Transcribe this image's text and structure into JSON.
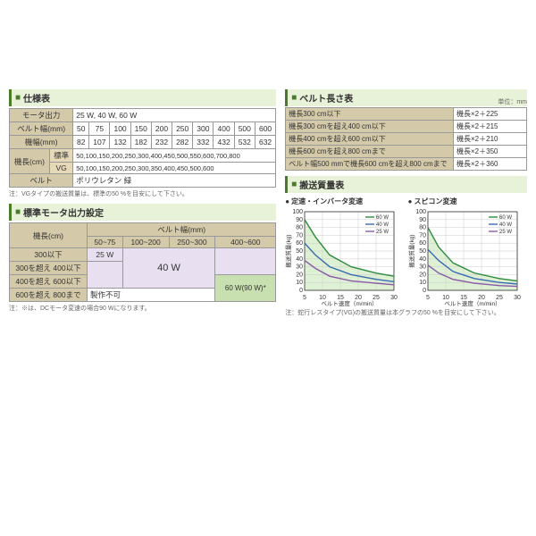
{
  "spacer_height": 90,
  "spec_table": {
    "title": "仕様表",
    "rows": [
      {
        "label": "モータ出力",
        "value": "25 W, 40 W, 60 W",
        "span": true
      },
      {
        "label": "ベルト幅(mm)",
        "cells": [
          "50",
          "75",
          "100",
          "150",
          "200",
          "250",
          "300",
          "400",
          "500",
          "600"
        ]
      },
      {
        "label": "機幅(mm)",
        "cells": [
          "82",
          "107",
          "132",
          "182",
          "232",
          "282",
          "332",
          "432",
          "532",
          "632"
        ]
      }
    ],
    "length_rows": [
      {
        "sublabel": "標準",
        "value": "50,100,150,200,250,300,400,450,500,550,600,700,800"
      },
      {
        "sublabel": "VG",
        "value": "50,100,150,200,250,300,350,400,450,500,600"
      }
    ],
    "length_label": "機長(cm)",
    "belt_row": {
      "label": "ベルト",
      "value": "ポリウレタン 緑"
    },
    "note": "注：VGタイプの搬送質量は、標準の50 %を目安にして下さい。"
  },
  "motor_table": {
    "title": "標準モータ出力設定",
    "col_header": "ベルト幅(mm)",
    "row_header": "機長(cm)",
    "cols": [
      "50~75",
      "100~200",
      "250~300",
      "400~600"
    ],
    "rows": [
      {
        "label": "300以下",
        "cells": [
          "25 W",
          "",
          "",
          ""
        ]
      },
      {
        "label": "300を超え 400以下",
        "cells": [
          "",
          "",
          "",
          ""
        ]
      },
      {
        "label": "400を超え 600以下",
        "cells": [
          "",
          "40 W",
          "",
          ""
        ]
      },
      {
        "label": "600を超え 800まで",
        "cells": [
          "製作不可",
          "",
          "",
          "60 W(90 W)*"
        ]
      }
    ],
    "note": "注：※は、DCモータ変速の場合90 Wになります。"
  },
  "belt_length": {
    "title": "ベルト長さ表",
    "unit": "単位：mm",
    "rows": [
      {
        "cond": "機長300 cm以下",
        "formula": "機長×2＋225"
      },
      {
        "cond": "機長300 cmを超え400 cm以下",
        "formula": "機長×2＋215"
      },
      {
        "cond": "機長400 cmを超え600 cm以下",
        "formula": "機長×2＋210"
      },
      {
        "cond": "機長600 cmを超え800 cmまで",
        "formula": "機長×2＋350"
      },
      {
        "cond": "ベルト幅500 mmで機長600 cmを超え800 cmまで",
        "formula": "機長×2＋360"
      }
    ]
  },
  "transport": {
    "title": "搬送質量表",
    "charts": [
      {
        "title": "定速・インバータ変速"
      },
      {
        "title": "スピコン変速"
      }
    ],
    "xlabel": "ベルト速度（m/min）",
    "ylabel_left": "搬送質量(kg)",
    "legend": [
      "60 W",
      "40 W",
      "25 W"
    ],
    "legend_colors": [
      "#2d8b3d",
      "#3a6bb0",
      "#8a5aa8"
    ],
    "xticks": [
      5,
      10,
      15,
      20,
      25,
      30
    ],
    "yticks": [
      0,
      10,
      20,
      30,
      40,
      50,
      60,
      70,
      80,
      90,
      100
    ],
    "note": "注：蛇行レスタイプ(VG)の搬送質量は本グラフの50 %を目安にして下さい。",
    "chart1_curves": [
      {
        "color": "#2d8b3d",
        "pts": [
          [
            5,
            90
          ],
          [
            8,
            68
          ],
          [
            12,
            45
          ],
          [
            18,
            30
          ],
          [
            25,
            22
          ],
          [
            30,
            18
          ]
        ]
      },
      {
        "color": "#3a6bb0",
        "pts": [
          [
            5,
            60
          ],
          [
            8,
            45
          ],
          [
            12,
            30
          ],
          [
            18,
            20
          ],
          [
            25,
            14
          ],
          [
            30,
            11
          ]
        ]
      },
      {
        "color": "#8a5aa8",
        "pts": [
          [
            5,
            38
          ],
          [
            8,
            28
          ],
          [
            12,
            18
          ],
          [
            18,
            12
          ],
          [
            25,
            9
          ],
          [
            30,
            7
          ]
        ]
      }
    ],
    "chart2_curves": [
      {
        "color": "#2d8b3d",
        "pts": [
          [
            5,
            80
          ],
          [
            8,
            55
          ],
          [
            12,
            35
          ],
          [
            18,
            22
          ],
          [
            25,
            15
          ],
          [
            30,
            12
          ]
        ]
      },
      {
        "color": "#3a6bb0",
        "pts": [
          [
            5,
            52
          ],
          [
            8,
            38
          ],
          [
            12,
            24
          ],
          [
            18,
            15
          ],
          [
            25,
            10
          ],
          [
            30,
            8
          ]
        ]
      },
      {
        "color": "#8a5aa8",
        "pts": [
          [
            5,
            32
          ],
          [
            8,
            22
          ],
          [
            12,
            14
          ],
          [
            18,
            9
          ],
          [
            25,
            6
          ],
          [
            30,
            5
          ]
        ]
      }
    ],
    "fill_color": "#c8e8b8",
    "grid_color": "#ccc",
    "xlim": [
      5,
      30
    ],
    "ylim": [
      0,
      100
    ]
  }
}
